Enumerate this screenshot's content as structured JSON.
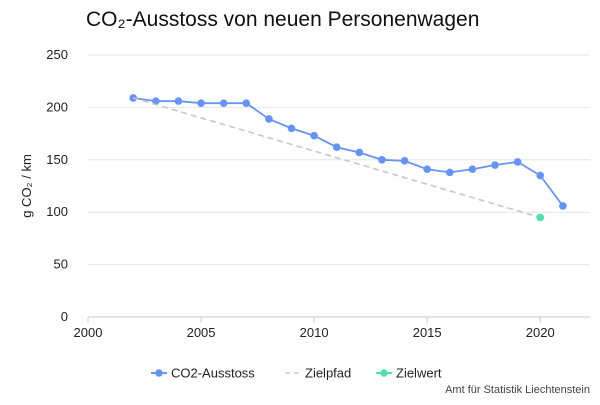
{
  "chart_data": {
    "type": "line",
    "title": "CO₂-Ausstoss von neuen Personenwagen",
    "xlabel": "",
    "ylabel": "g CO₂ / km",
    "xlim": [
      2000,
      2022.2
    ],
    "ylim": [
      0,
      250
    ],
    "xticks": [
      2000,
      2005,
      2010,
      2015,
      2020
    ],
    "yticks": [
      0,
      50,
      100,
      150,
      200,
      250
    ],
    "grid": true,
    "legend_position": "bottom",
    "series": [
      {
        "name": "CO2-Ausstoss",
        "style": "solid-with-markers",
        "color": "#6694f6",
        "x": [
          2002,
          2003,
          2004,
          2005,
          2006,
          2007,
          2008,
          2009,
          2010,
          2011,
          2012,
          2013,
          2014,
          2015,
          2016,
          2017,
          2018,
          2019,
          2020,
          2021
        ],
        "y": [
          209,
          206,
          206,
          204,
          204,
          204,
          189,
          180,
          173,
          162,
          157,
          150,
          149,
          141,
          138,
          141,
          145,
          148,
          135,
          106
        ]
      },
      {
        "name": "Zielpfad",
        "style": "dashed",
        "color": "#c8c8c8",
        "x": [
          2002,
          2020
        ],
        "y": [
          209,
          95
        ]
      },
      {
        "name": "Zielwert",
        "style": "marker",
        "color": "#4ee0b1",
        "x": [
          2020
        ],
        "y": [
          95
        ]
      }
    ]
  },
  "footer": {
    "source": "Amt für Statistik Liechtenstein"
  }
}
